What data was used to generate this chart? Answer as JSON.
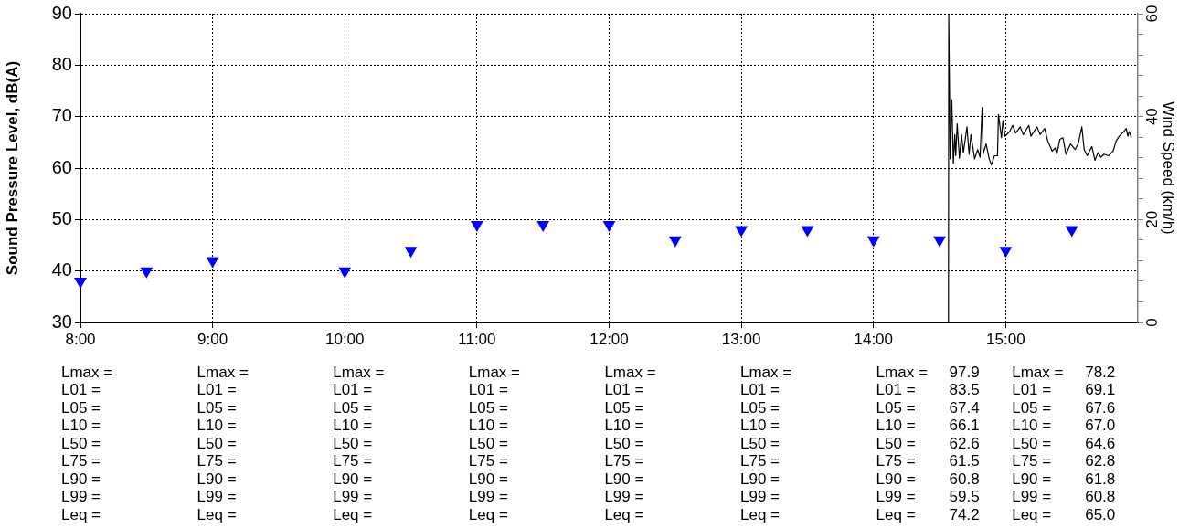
{
  "chart_data": {
    "type": "line",
    "ylabel": "Sound Pressure Level, dB(A)",
    "y2label": "Wind Speed (km/h)",
    "xlim": [
      8,
      16
    ],
    "xticks": [
      {
        "value": 8,
        "label": "8:00"
      },
      {
        "value": 9,
        "label": "9:00"
      },
      {
        "value": 10,
        "label": "10:00"
      },
      {
        "value": 11,
        "label": "11:00"
      },
      {
        "value": 12,
        "label": "12:00"
      },
      {
        "value": 13,
        "label": "13:00"
      },
      {
        "value": 14,
        "label": "14:00"
      },
      {
        "value": 15,
        "label": "15:00"
      }
    ],
    "ylim": [
      30,
      90
    ],
    "yticks": [
      30,
      40,
      50,
      60,
      70,
      80,
      90
    ],
    "y2lim": [
      0,
      60
    ],
    "y2ticks": [
      0,
      {
        "value": 4,
        "label": null
      },
      {
        "value": 8,
        "label": null
      },
      {
        "value": 12,
        "label": null
      },
      {
        "value": 16,
        "label": null
      },
      20,
      {
        "value": 24,
        "label": null
      },
      {
        "value": 28,
        "label": null
      },
      {
        "value": 32,
        "label": null
      },
      {
        "value": 36,
        "label": null
      },
      40,
      {
        "value": 44,
        "label": null
      },
      {
        "value": 48,
        "label": null
      },
      {
        "value": 52,
        "label": null
      },
      {
        "value": 56,
        "label": null
      },
      60
    ],
    "grid": true,
    "series": [
      {
        "color": "#000000",
        "marker": "none",
        "x": [
          14.567,
          14.569,
          14.58,
          14.592,
          14.604,
          14.615,
          14.622,
          14.633,
          14.65,
          14.666,
          14.68,
          14.707,
          14.723,
          14.737,
          14.765,
          14.788,
          14.806,
          14.822,
          14.829,
          14.852,
          14.875,
          14.892,
          14.915,
          14.938,
          14.945,
          14.968,
          14.979,
          14.995,
          15.03,
          15.053,
          15.076,
          15.11,
          15.133,
          15.175,
          15.191,
          15.237,
          15.26,
          15.295,
          15.318,
          15.352,
          15.375,
          15.387,
          15.41,
          15.433,
          15.456,
          15.491,
          15.525,
          15.548,
          15.576,
          15.594,
          15.617,
          15.652,
          15.675,
          15.698,
          15.721,
          15.744,
          15.779,
          15.813,
          15.836,
          15.859,
          15.894,
          15.912,
          15.924,
          15.935,
          15.951
        ],
        "values": [
          30,
          90,
          61.8,
          73.3,
          60.9,
          66.5,
          62.4,
          68.6,
          61.9,
          66.5,
          63.0,
          68.0,
          62.7,
          66.5,
          61.8,
          63.6,
          62.1,
          71.8,
          62.7,
          64.7,
          61.8,
          60.6,
          62.4,
          62.4,
          70.4,
          65.9,
          69.2,
          66.2,
          67.1,
          68.3,
          66.8,
          68.0,
          66.5,
          68.3,
          66.2,
          68.0,
          66.5,
          67.7,
          65.3,
          63.3,
          63.9,
          62.7,
          65.6,
          65.9,
          62.7,
          64.7,
          63.6,
          64.7,
          68.0,
          63.6,
          62.4,
          64.2,
          61.5,
          63.0,
          62.1,
          62.7,
          62.4,
          63.3,
          65.3,
          66.2,
          67.1,
          67.7,
          66.2,
          67.1,
          65.9
        ]
      },
      {
        "type": "scatter",
        "axis": "y2",
        "color": "#0000ff",
        "marker": "triangle",
        "x": [
          8,
          8.5,
          9,
          10,
          10.5,
          11,
          11.5,
          12,
          12.5,
          13,
          13.5,
          14,
          14.5,
          15,
          15.5
        ],
        "values": [
          8,
          10,
          12,
          10,
          14,
          19,
          19,
          19,
          16,
          18,
          18,
          16,
          16,
          14,
          18
        ]
      }
    ],
    "annotations": [
      "Lmax =\nL01 =\nL05 =\nL10 =\nL50 =\nL75 =\nL90 =\nL99 =\nLeq =",
      "Lmax =\nL01 =\nL05 =\nL10 =\nL50 =\nL75 =\nL90 =\nL99 =\nLeq =",
      "Lmax =\nL01 =\nL05 =\nL10 =\nL50 =\nL75 =\nL90 =\nL99 =\nLeq =",
      "Lmax =\nL01 =\nL05 =\nL10 =\nL50 =\nL75 =\nL90 =\nL99 =\nLeq =",
      "Lmax =\nL01 =\nL05 =\nL10 =\nL50 =\nL75 =\nL90 =\nL99 =\nLeq =",
      "Lmax =\nL01 =\nL05 =\nL10 =\nL50 =\nL75 =\nL90 =\nL99 =\nLeq =",
      "Lmax = 97.9\nL01 = 83.5\nL05 = 67.4\nL10 = 66.1\nL50 = 62.6\nL75 = 61.5\nL90 = 60.8\nL99 = 59.5\nLeq = 74.2",
      "Lmax = 78.2\nL01 = 69.1\nL05 = 67.6\nL10 = 67.0\nL50 = 64.6\nL75 = 62.8\nL90 = 61.8\nL99 = 60.8\nLeq = 65.0"
    ]
  }
}
